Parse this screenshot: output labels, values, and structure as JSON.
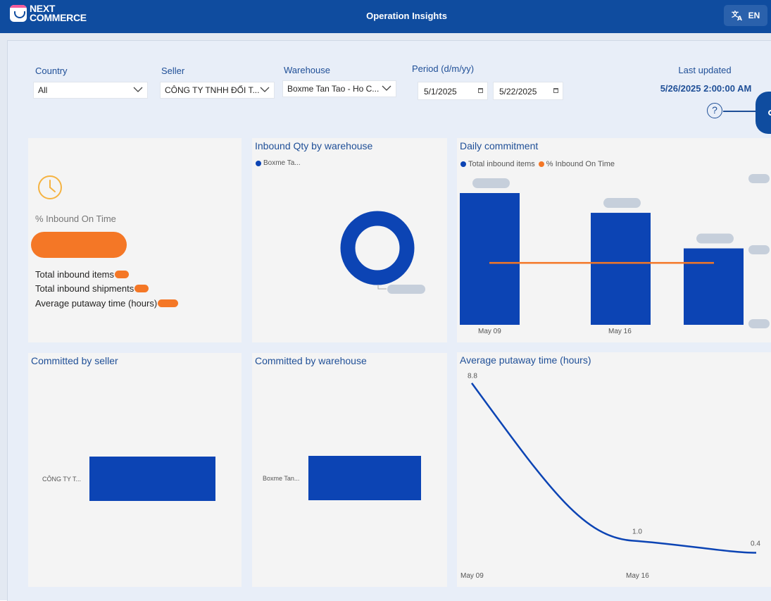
{
  "header": {
    "logo_line1": "NEXT",
    "logo_line2": "COMMERCE",
    "title": "Operation Insights",
    "language": "EN"
  },
  "filters": {
    "country_label": "Country",
    "country_value": "All",
    "seller_label": "Seller",
    "seller_value": "CÔNG TY TNHH ĐỔI T...",
    "warehouse_label": "Warehouse",
    "warehouse_value": "Boxme Tan Tao - Ho C...",
    "period_label": "Period (d/m/yy)",
    "period_start": "5/1/2025",
    "period_end": "5/22/2025",
    "last_updated_label": "Last updated",
    "last_updated_value": "5/26/2025 2:00:00 AM",
    "help_symbol": "?"
  },
  "kpi_card": {
    "icon": "clock-icon",
    "title": "% Inbound On Time",
    "rows": [
      "Total inbound items",
      "Total inbound shipments",
      "Average putaway time (hours)"
    ]
  },
  "inbound_qty": {
    "title": "Inbound Qty by warehouse",
    "legend": "Boxme Ta..."
  },
  "daily_commitment": {
    "title": "Daily commitment",
    "legend_items": [
      "Total inbound items",
      "% Inbound On Time"
    ],
    "x_labels": [
      "May 09",
      "May 16"
    ]
  },
  "committed_seller": {
    "title": "Committed by seller",
    "category": "CÔNG TY T..."
  },
  "committed_warehouse": {
    "title": "Committed by warehouse",
    "category": "Boxme Tan..."
  },
  "putaway": {
    "title": "Average putaway time (hours)",
    "x_labels": [
      "May 09",
      "May 16"
    ]
  },
  "colors": {
    "primary": "#0f4c9f",
    "bar": "#0c44b4",
    "accent": "#f47726",
    "placeholder": "#c6cfdb"
  },
  "chart_data": [
    {
      "type": "pie",
      "title": "Inbound Qty by warehouse",
      "categories": [
        "Boxme Ta..."
      ],
      "values": [
        100
      ]
    },
    {
      "type": "bar",
      "title": "Daily commitment",
      "categories": [
        "May 09",
        "May 16",
        ""
      ],
      "series": [
        {
          "name": "Total inbound items",
          "values": [
            100,
            85,
            58
          ]
        },
        {
          "name": "% Inbound On Time",
          "values": [
            50,
            50,
            50
          ]
        }
      ]
    },
    {
      "type": "line",
      "title": "Average putaway time (hours)",
      "x": [
        "May 09",
        "May 16",
        ""
      ],
      "series": [
        {
          "values": [
            8.8,
            1.0,
            0.4
          ]
        }
      ],
      "data_labels": [
        "8.8",
        "1.0",
        "0.4"
      ]
    }
  ]
}
